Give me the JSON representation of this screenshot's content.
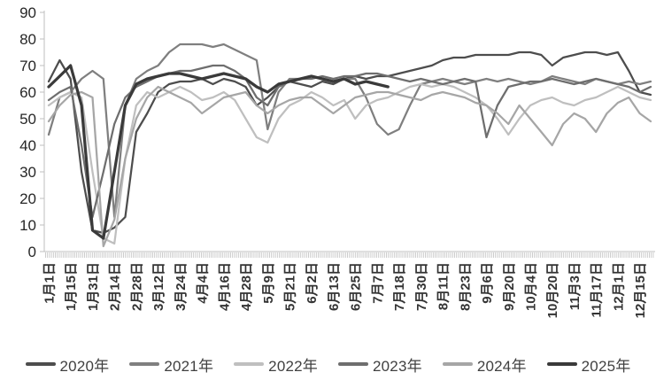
{
  "chart_data": {
    "type": "line",
    "title": "",
    "xlabel": "",
    "ylabel": "",
    "ylim": [
      0,
      90
    ],
    "y_tick_step": 10,
    "grid": false,
    "legend_position": "bottom",
    "points_per_label": 2,
    "x_labels": [
      "1月1日",
      "1月15日",
      "1月31日",
      "2月14日",
      "2月28日",
      "3月12日",
      "3月24日",
      "4月4日",
      "4月16日",
      "4月28日",
      "5月9日",
      "5月21日",
      "6月2日",
      "6月13日",
      "6月25日",
      "7月7日",
      "7月18日",
      "7月30日",
      "8月11日",
      "8月23日",
      "9月6日",
      "9月20日",
      "10月4日",
      "10月20日",
      "11月3日",
      "11月17日",
      "12月1日",
      "12月15日"
    ],
    "colors": {
      "axis": "#bfbfbf",
      "minor_tick": "#c0c0c0",
      "y_label": "#262626",
      "x_label": "#333333",
      "legend_text": "#404040"
    },
    "series": [
      {
        "name": "2020年",
        "color": "#4d4d4d",
        "width": 2.25,
        "values": [
          64,
          72,
          65,
          30,
          8,
          7,
          9,
          13,
          45,
          52,
          60,
          63,
          64,
          64,
          65,
          63,
          65,
          64,
          62,
          55,
          58,
          62,
          64,
          63,
          62,
          64,
          63,
          65,
          66,
          65,
          66,
          66,
          67,
          68,
          69,
          70,
          72,
          73,
          73,
          74,
          74,
          74,
          74,
          75,
          75,
          74,
          70,
          73,
          74,
          75,
          75,
          74,
          75,
          68,
          60,
          59
        ]
      },
      {
        "name": "2021年",
        "color": "#7f7f7f",
        "width": 2.25,
        "values": [
          44,
          58,
          60,
          65,
          68,
          65,
          13,
          55,
          65,
          68,
          70,
          75,
          78,
          78,
          78,
          77,
          78,
          76,
          74,
          72,
          46,
          60,
          65,
          65,
          66,
          65,
          64,
          65,
          65,
          58,
          48,
          44,
          46,
          55,
          63,
          64,
          65,
          64,
          63,
          64,
          65,
          64,
          65,
          64,
          63,
          64,
          66,
          65,
          64,
          63,
          65,
          64,
          63,
          64,
          63,
          64
        ]
      },
      {
        "name": "2022年",
        "color": "#bfbfbf",
        "width": 2.25,
        "values": [
          55,
          58,
          60,
          58,
          30,
          5,
          3,
          35,
          55,
          60,
          58,
          60,
          62,
          60,
          57,
          58,
          60,
          57,
          50,
          43,
          41,
          50,
          55,
          57,
          60,
          58,
          55,
          57,
          50,
          55,
          57,
          58,
          60,
          62,
          63,
          62,
          63,
          62,
          60,
          58,
          55,
          50,
          44,
          50,
          55,
          57,
          58,
          56,
          55,
          57,
          58,
          60,
          62,
          60,
          58,
          57
        ]
      },
      {
        "name": "2023年",
        "color": "#6e6e6e",
        "width": 2.25,
        "values": [
          57,
          60,
          62,
          40,
          13,
          30,
          48,
          58,
          62,
          64,
          66,
          67,
          68,
          68,
          69,
          70,
          70,
          68,
          65,
          58,
          55,
          62,
          64,
          65,
          65,
          66,
          65,
          66,
          66,
          67,
          67,
          66,
          65,
          64,
          65,
          64,
          63,
          64,
          65,
          64,
          43,
          55,
          62,
          63,
          64,
          64,
          65,
          64,
          63,
          64,
          65,
          64,
          63,
          62,
          60,
          62
        ]
      },
      {
        "name": "2024年",
        "color": "#a6a6a6",
        "width": 2.25,
        "values": [
          49,
          55,
          59,
          60,
          58,
          2,
          12,
          35,
          50,
          58,
          62,
          60,
          58,
          56,
          52,
          55,
          58,
          59,
          60,
          55,
          52,
          55,
          57,
          58,
          58,
          55,
          52,
          55,
          58,
          59,
          60,
          60,
          59,
          58,
          57,
          59,
          60,
          59,
          58,
          56,
          55,
          52,
          48,
          55,
          50,
          45,
          40,
          48,
          52,
          50,
          45,
          52,
          56,
          58,
          52,
          49
        ]
      },
      {
        "name": "2025年",
        "color": "#3a3a3a",
        "width": 3.25,
        "values": [
          62,
          66,
          70,
          55,
          8,
          5,
          30,
          55,
          63,
          65,
          66,
          67,
          67,
          66,
          65,
          66,
          67,
          66,
          65,
          62,
          60,
          63,
          64,
          65,
          66,
          65,
          64,
          65,
          63,
          64,
          63,
          62,
          null,
          null,
          null,
          null,
          null,
          null,
          null,
          null,
          null,
          null,
          null,
          null,
          null,
          null,
          null,
          null,
          null,
          null,
          null,
          null,
          null,
          null,
          null,
          null
        ]
      }
    ]
  }
}
